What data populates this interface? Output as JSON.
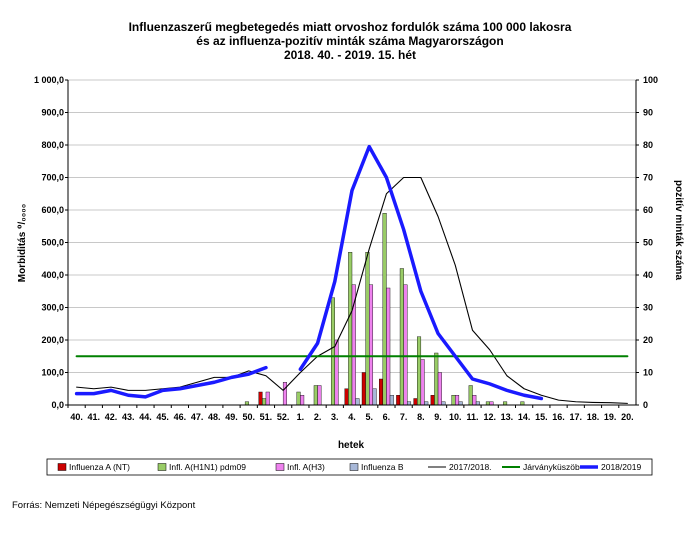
{
  "chart_data": {
    "type": "bar",
    "title_lines": [
      "Influenzaszerű megbetegedés miatt orvoshoz fordulók száma 100 000 lakosra",
      "és az influenza-pozitív minták száma Magyarországon",
      "2018. 40. - 2019. 15. hét"
    ],
    "xlabel": "hetek",
    "ylabel_left": "Morbiditás ⁰/₀₀₀₀",
    "ylabel_right": "pozitív minták száma",
    "ylim_left": [
      0,
      1000
    ],
    "ylim_right": [
      0,
      100
    ],
    "left_tick_labels": [
      "0,0",
      "100,0",
      "200,0",
      "300,0",
      "400,0",
      "500,0",
      "600,0",
      "700,0",
      "800,0",
      "900,0",
      "1 000,0"
    ],
    "right_tick_labels": [
      "0",
      "10",
      "20",
      "30",
      "40",
      "50",
      "60",
      "70",
      "80",
      "90",
      "100"
    ],
    "categories": [
      "40.",
      "41.",
      "42.",
      "43.",
      "44.",
      "45.",
      "46.",
      "47.",
      "48.",
      "49.",
      "50.",
      "51.",
      "52.",
      "1.",
      "2.",
      "3.",
      "4.",
      "5.",
      "6.",
      "7.",
      "8.",
      "9.",
      "10.",
      "11.",
      "12.",
      "13.",
      "14.",
      "15.",
      "16.",
      "17.",
      "18.",
      "19.",
      "20."
    ],
    "grid": true,
    "legend_position": "bottom",
    "bar_series": [
      {
        "name": "Influenza A (NT)",
        "color": "#cc0000",
        "axis": "right",
        "values": [
          0,
          0,
          0,
          0,
          0,
          0,
          0,
          0,
          0,
          0,
          0,
          4,
          0,
          0,
          0,
          0,
          5,
          10,
          8,
          3,
          2,
          3,
          0,
          0,
          0,
          0,
          0,
          0,
          0,
          0,
          0,
          0,
          0
        ]
      },
      {
        "name": "Infl. A(H1N1) pdm09",
        "color": "#99cc66",
        "axis": "right",
        "values": [
          0,
          0,
          0,
          0,
          0,
          0,
          0,
          0,
          0,
          0,
          1,
          2,
          0,
          4,
          6,
          33,
          47,
          47,
          59,
          42,
          21,
          16,
          3,
          6,
          1,
          1,
          1,
          0,
          0,
          0,
          0,
          0,
          0
        ]
      },
      {
        "name": "Infl. A(H3)",
        "color": "#ee82ee",
        "axis": "right",
        "values": [
          0,
          0,
          0,
          0,
          0,
          0,
          0,
          0,
          0,
          0,
          0,
          4,
          7,
          3,
          6,
          20,
          37,
          37,
          36,
          37,
          14,
          10,
          3,
          3,
          1,
          0,
          0,
          0,
          0,
          0,
          0,
          0,
          0
        ]
      },
      {
        "name": "Influenza B",
        "color": "#a8b8d8",
        "axis": "right",
        "values": [
          0,
          0,
          0,
          0,
          0,
          0,
          0,
          0,
          0,
          0,
          0,
          0,
          0,
          0,
          0,
          0,
          2,
          5,
          3,
          1,
          1,
          1,
          1,
          1,
          0,
          0,
          0,
          0,
          0,
          0,
          0,
          0,
          0
        ]
      }
    ],
    "line_series": [
      {
        "name": "2017/2018.",
        "color": "#000000",
        "axis": "left",
        "values": [
          55,
          50,
          55,
          45,
          45,
          50,
          55,
          70,
          85,
          85,
          105,
          90,
          45,
          100,
          150,
          180,
          290,
          480,
          650,
          700,
          700,
          580,
          430,
          230,
          170,
          90,
          50,
          30,
          15,
          10,
          8,
          7,
          5
        ]
      },
      {
        "name": "Járványküszöb",
        "color": "#008000",
        "axis": "left",
        "values": [
          150,
          150,
          150,
          150,
          150,
          150,
          150,
          150,
          150,
          150,
          150,
          150,
          150,
          150,
          150,
          150,
          150,
          150,
          150,
          150,
          150,
          150,
          150,
          150,
          150,
          150,
          150,
          150,
          150,
          150,
          150,
          150,
          150
        ]
      },
      {
        "name": "2018/2019",
        "color": "#1a1aff",
        "axis": "left",
        "values": [
          35,
          35,
          45,
          30,
          25,
          45,
          50,
          60,
          70,
          85,
          95,
          115,
          null,
          110,
          190,
          380,
          660,
          795,
          700,
          540,
          350,
          220,
          150,
          80,
          65,
          45,
          30,
          20,
          null,
          null,
          null,
          null,
          null
        ]
      }
    ]
  },
  "footer": {
    "source": "Forrás: Nemzeti Népegészségügyi Központ"
  }
}
